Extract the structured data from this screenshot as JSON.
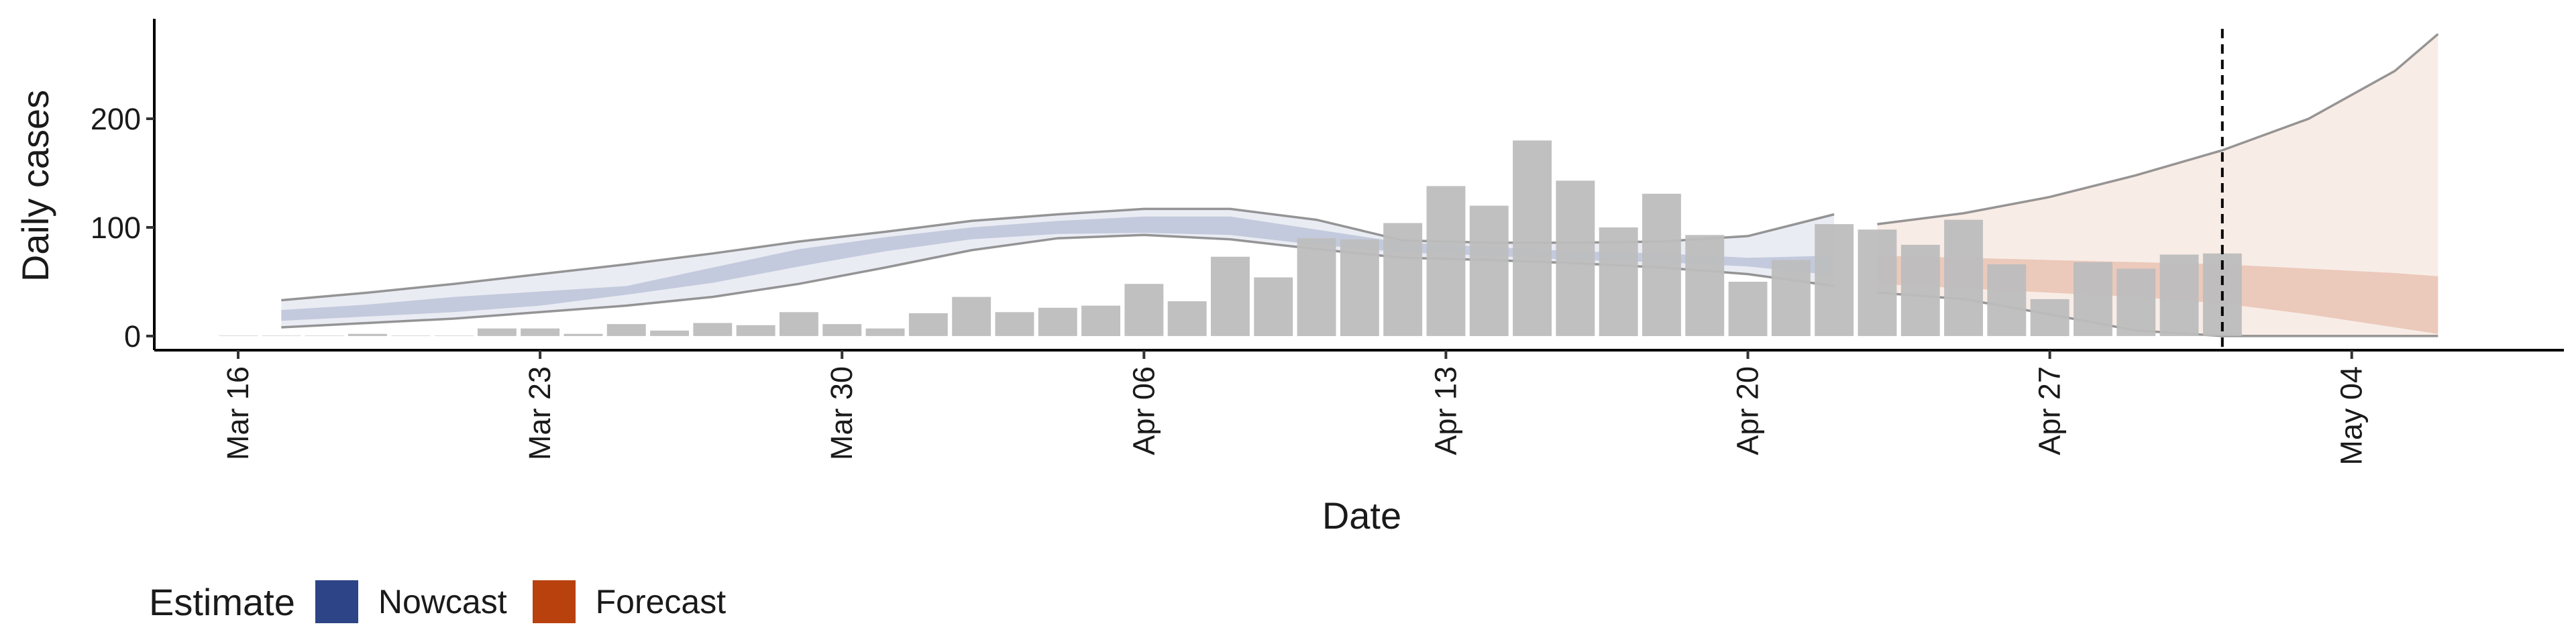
{
  "chart_data": {
    "type": "bar",
    "xlabel": "Date",
    "ylabel": "Daily cases",
    "x_ticks": [
      "Mar 16",
      "Mar 23",
      "Mar 30",
      "Apr 06",
      "Apr 13",
      "Apr 20",
      "Apr 27",
      "May 04"
    ],
    "y_ticks": [
      0,
      100,
      200
    ],
    "ylim": [
      -13,
      292
    ],
    "grid": false,
    "bar_color": "#bdbdbd",
    "reference_line": {
      "date": "2020-05-01",
      "style": "dashed"
    },
    "observed_cases": {
      "dates": [
        "2020-03-16",
        "2020-03-17",
        "2020-03-18",
        "2020-03-19",
        "2020-03-20",
        "2020-03-21",
        "2020-03-22",
        "2020-03-23",
        "2020-03-24",
        "2020-03-25",
        "2020-03-26",
        "2020-03-27",
        "2020-03-28",
        "2020-03-29",
        "2020-03-30",
        "2020-03-31",
        "2020-04-01",
        "2020-04-02",
        "2020-04-03",
        "2020-04-04",
        "2020-04-05",
        "2020-04-06",
        "2020-04-07",
        "2020-04-08",
        "2020-04-09",
        "2020-04-10",
        "2020-04-11",
        "2020-04-12",
        "2020-04-13",
        "2020-04-14",
        "2020-04-15",
        "2020-04-16",
        "2020-04-17",
        "2020-04-18",
        "2020-04-19",
        "2020-04-20",
        "2020-04-21",
        "2020-04-22",
        "2020-04-23",
        "2020-04-24",
        "2020-04-25",
        "2020-04-26",
        "2020-04-27",
        "2020-04-28",
        "2020-04-29",
        "2020-04-30",
        "2020-05-01"
      ],
      "values": [
        0,
        0,
        0,
        2,
        0,
        0,
        7,
        7,
        2,
        11,
        5,
        12,
        10,
        22,
        11,
        7,
        21,
        36,
        22,
        26,
        28,
        48,
        32,
        73,
        54,
        90,
        89,
        104,
        138,
        120,
        180,
        143,
        100,
        131,
        93,
        50,
        70,
        103,
        98,
        84,
        107,
        66,
        34,
        68,
        62,
        75,
        76
      ]
    },
    "series": [
      {
        "name": "Nowcast",
        "color": "#2d4486",
        "x": [
          "2020-03-17",
          "2020-03-19",
          "2020-03-21",
          "2020-03-23",
          "2020-03-25",
          "2020-03-27",
          "2020-03-29",
          "2020-03-31",
          "2020-04-02",
          "2020-04-04",
          "2020-04-06",
          "2020-04-08",
          "2020-04-10",
          "2020-04-12",
          "2020-04-14",
          "2020-04-16",
          "2020-04-18",
          "2020-04-20",
          "2020-04-22"
        ],
        "outer_upper": [
          33,
          40,
          48,
          57,
          66,
          76,
          87,
          96,
          106,
          112,
          117,
          117,
          107,
          88,
          86,
          86,
          87,
          92,
          112
        ],
        "outer_lower": [
          8,
          12,
          16,
          22,
          28,
          36,
          48,
          63,
          79,
          90,
          93,
          89,
          80,
          72,
          70,
          67,
          63,
          57,
          46
        ],
        "inner_upper": [
          24,
          29,
          36,
          41,
          46,
          63,
          80,
          91,
          100,
          106,
          110,
          110,
          98,
          86,
          82,
          78,
          76,
          72,
          74
        ],
        "inner_lower": [
          14,
          18,
          22,
          28,
          38,
          49,
          64,
          78,
          89,
          94,
          95,
          93,
          84,
          77,
          74,
          70,
          68,
          64,
          56
        ]
      },
      {
        "name": "Forecast",
        "color": "#b8410e",
        "x": [
          "2020-04-23",
          "2020-04-25",
          "2020-04-27",
          "2020-04-29",
          "2020-05-01",
          "2020-05-03",
          "2020-05-05",
          "2020-05-06"
        ],
        "outer_upper": [
          103,
          113,
          128,
          148,
          171,
          200,
          244,
          278
        ],
        "outer_lower": [
          40,
          34,
          20,
          5,
          0,
          0,
          0,
          0
        ],
        "inner_upper": [
          74,
          72,
          70,
          68,
          66,
          62,
          58,
          55
        ],
        "inner_lower": [
          48,
          44,
          40,
          36,
          30,
          20,
          8,
          2
        ]
      }
    ],
    "legend": {
      "title": "Estimate",
      "items": [
        {
          "label": "Nowcast",
          "color": "#2d4486"
        },
        {
          "label": "Forecast",
          "color": "#b8410e"
        }
      ]
    }
  }
}
